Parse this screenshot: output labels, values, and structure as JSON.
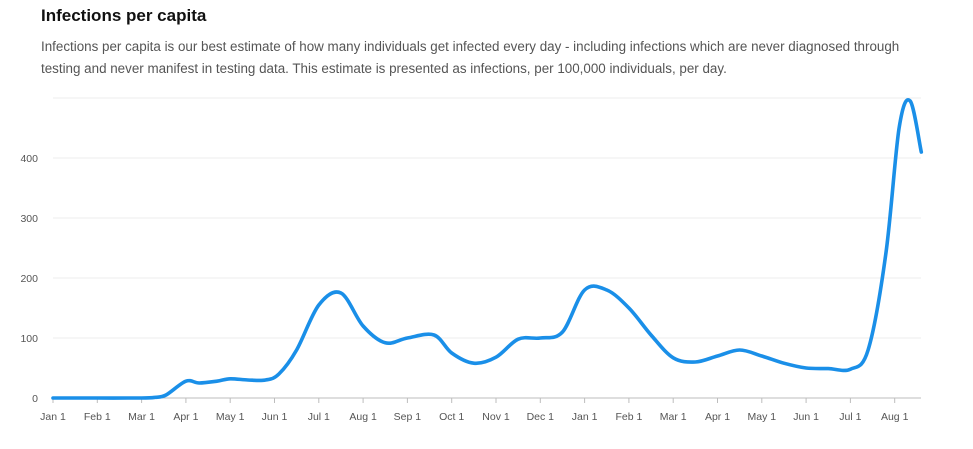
{
  "header": {
    "title": "Infections per capita",
    "description": "Infections per capita is our best estimate of how many individuals get infected every day - including infections which are never diagnosed through testing and never manifest in testing data. This estimate is presented as infections, per 100,000 individuals, per day."
  },
  "chart_data": {
    "type": "line",
    "title": "Infections per capita",
    "xlabel": "",
    "ylabel": "",
    "ylim": [
      0,
      500
    ],
    "yticks": [
      0,
      100,
      200,
      300,
      400
    ],
    "x_tick_labels": [
      "Jan 1",
      "Feb 1",
      "Mar 1",
      "Apr 1",
      "May 1",
      "Jun 1",
      "Jul 1",
      "Aug 1",
      "Sep 1",
      "Oct 1",
      "Nov 1",
      "Dec 1",
      "Jan 1",
      "Feb 1",
      "Mar 1",
      "Apr 1",
      "May 1",
      "Jun 1",
      "Jul 1",
      "Aug 1"
    ],
    "x_unit": "months since first Jan 1",
    "grid": true,
    "series": [
      {
        "name": "Infections per 100,000 per day",
        "color": "#1a8fe8",
        "x": [
          0,
          1,
          2,
          2.3,
          2.55,
          3,
          3.3,
          3.7,
          4,
          4.4,
          4.8,
          5.1,
          5.5,
          6,
          6.5,
          7,
          7.5,
          8,
          8.6,
          9,
          9.5,
          10,
          10.5,
          11,
          11.5,
          12,
          12.5,
          13,
          13.5,
          14,
          14.5,
          15,
          15.5,
          16,
          16.5,
          17,
          17.5,
          18,
          18.4,
          18.8,
          19.1,
          19.35,
          19.6
        ],
        "values": [
          0,
          0,
          0,
          1,
          5,
          28,
          25,
          28,
          32,
          30,
          30,
          40,
          80,
          155,
          175,
          120,
          92,
          100,
          105,
          75,
          58,
          68,
          98,
          100,
          110,
          180,
          180,
          150,
          105,
          67,
          60,
          70,
          80,
          70,
          58,
          50,
          49,
          48,
          80,
          240,
          450,
          495,
          410
        ]
      }
    ]
  }
}
